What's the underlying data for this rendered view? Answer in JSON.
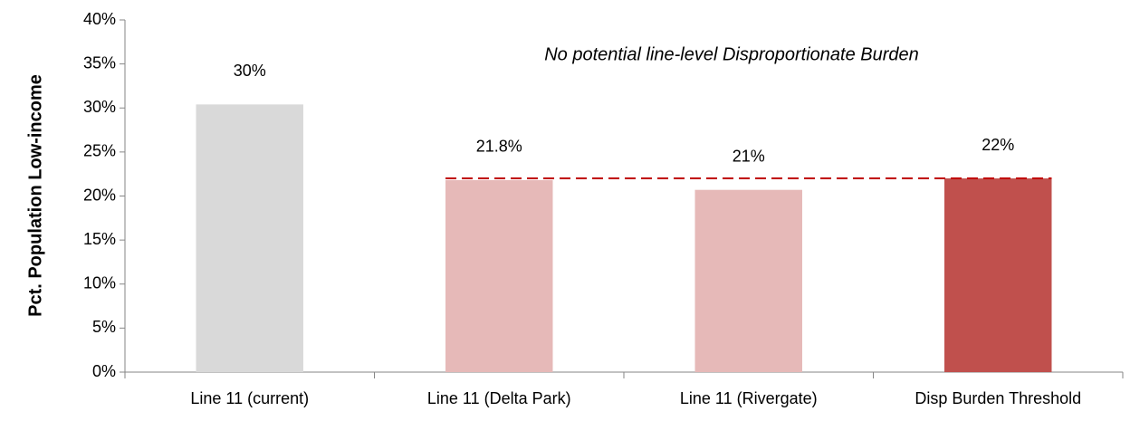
{
  "chart_data": {
    "type": "bar",
    "y_label": "Pct. Population Low-income",
    "annotation": "No potential line-level Disproportionate Burden",
    "annotation_color": "#00b050",
    "categories": [
      "Line 11 (current)",
      "Line 11 (Delta Park)",
      "Line 11 (Rivergate)",
      "Disp Burden Threshold"
    ],
    "values": [
      30.4,
      21.8,
      20.7,
      22
    ],
    "value_labels": [
      "30%",
      "21.8%",
      "21%",
      "22%"
    ],
    "colors": [
      "#d9d9d9",
      "#e6b9b8",
      "#e6b9b8",
      "#c0504d"
    ],
    "threshold_line": {
      "value": 22,
      "color": "#c00000"
    },
    "ylim": [
      0,
      40
    ],
    "yticks": [
      {
        "value": 0,
        "label": "0%"
      },
      {
        "value": 5,
        "label": "5%"
      },
      {
        "value": 10,
        "label": "10%"
      },
      {
        "value": 15,
        "label": "15%"
      },
      {
        "value": 20,
        "label": "20%"
      },
      {
        "value": 25,
        "label": "25%"
      },
      {
        "value": 30,
        "label": "30%"
      },
      {
        "value": 35,
        "label": "35%"
      },
      {
        "value": 40,
        "label": "40%"
      }
    ],
    "grid": false
  }
}
